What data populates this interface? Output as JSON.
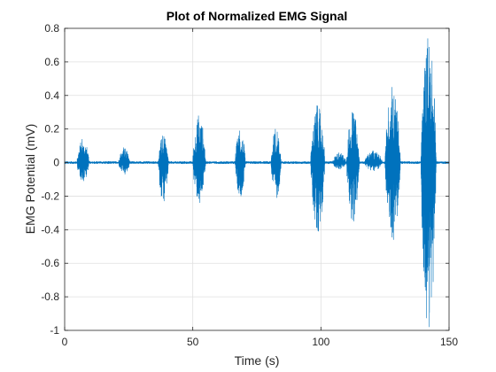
{
  "chart_data": {
    "type": "line",
    "title": "Plot of Normalized EMG Signal",
    "xlabel": "Time (s)",
    "ylabel": "EMG Potential (mV)",
    "xlim": [
      0,
      150
    ],
    "ylim": [
      -1,
      0.8
    ],
    "xticks": [
      0,
      50,
      100,
      150
    ],
    "xtick_labels": [
      "0",
      "50",
      "100",
      "150"
    ],
    "yticks": [
      -1,
      -0.8,
      -0.6,
      -0.4,
      -0.2,
      0,
      0.2,
      0.4,
      0.6,
      0.8
    ],
    "ytick_labels": [
      "-1",
      "-0.8",
      "-0.6",
      "-0.4",
      "-0.2",
      "0",
      "0.2",
      "0.4",
      "0.6",
      "0.8"
    ],
    "grid": true,
    "line_color": "#0072BD",
    "baseline_noise_amplitude": 0.008,
    "bursts": [
      {
        "start": 4.8,
        "end": 9.5,
        "max": 0.14,
        "min": -0.11
      },
      {
        "start": 21.0,
        "end": 25.5,
        "max": 0.09,
        "min": -0.07
      },
      {
        "start": 36.5,
        "end": 40.5,
        "max": 0.16,
        "min": -0.23
      },
      {
        "start": 50.0,
        "end": 55.0,
        "max": 0.28,
        "min": -0.24
      },
      {
        "start": 66.5,
        "end": 70.5,
        "max": 0.19,
        "min": -0.2
      },
      {
        "start": 80.5,
        "end": 84.5,
        "max": 0.2,
        "min": -0.21
      },
      {
        "start": 96.0,
        "end": 101.5,
        "max": 0.34,
        "min": -0.41
      },
      {
        "start": 104.5,
        "end": 110.0,
        "max": 0.06,
        "min": -0.04
      },
      {
        "start": 110.0,
        "end": 115.0,
        "max": 0.3,
        "min": -0.35
      },
      {
        "start": 117.0,
        "end": 124.0,
        "max": 0.07,
        "min": -0.05
      },
      {
        "start": 125.0,
        "end": 131.0,
        "max": 0.45,
        "min": -0.46
      },
      {
        "start": 139.0,
        "end": 145.0,
        "max": 0.74,
        "min": -0.98
      }
    ]
  }
}
